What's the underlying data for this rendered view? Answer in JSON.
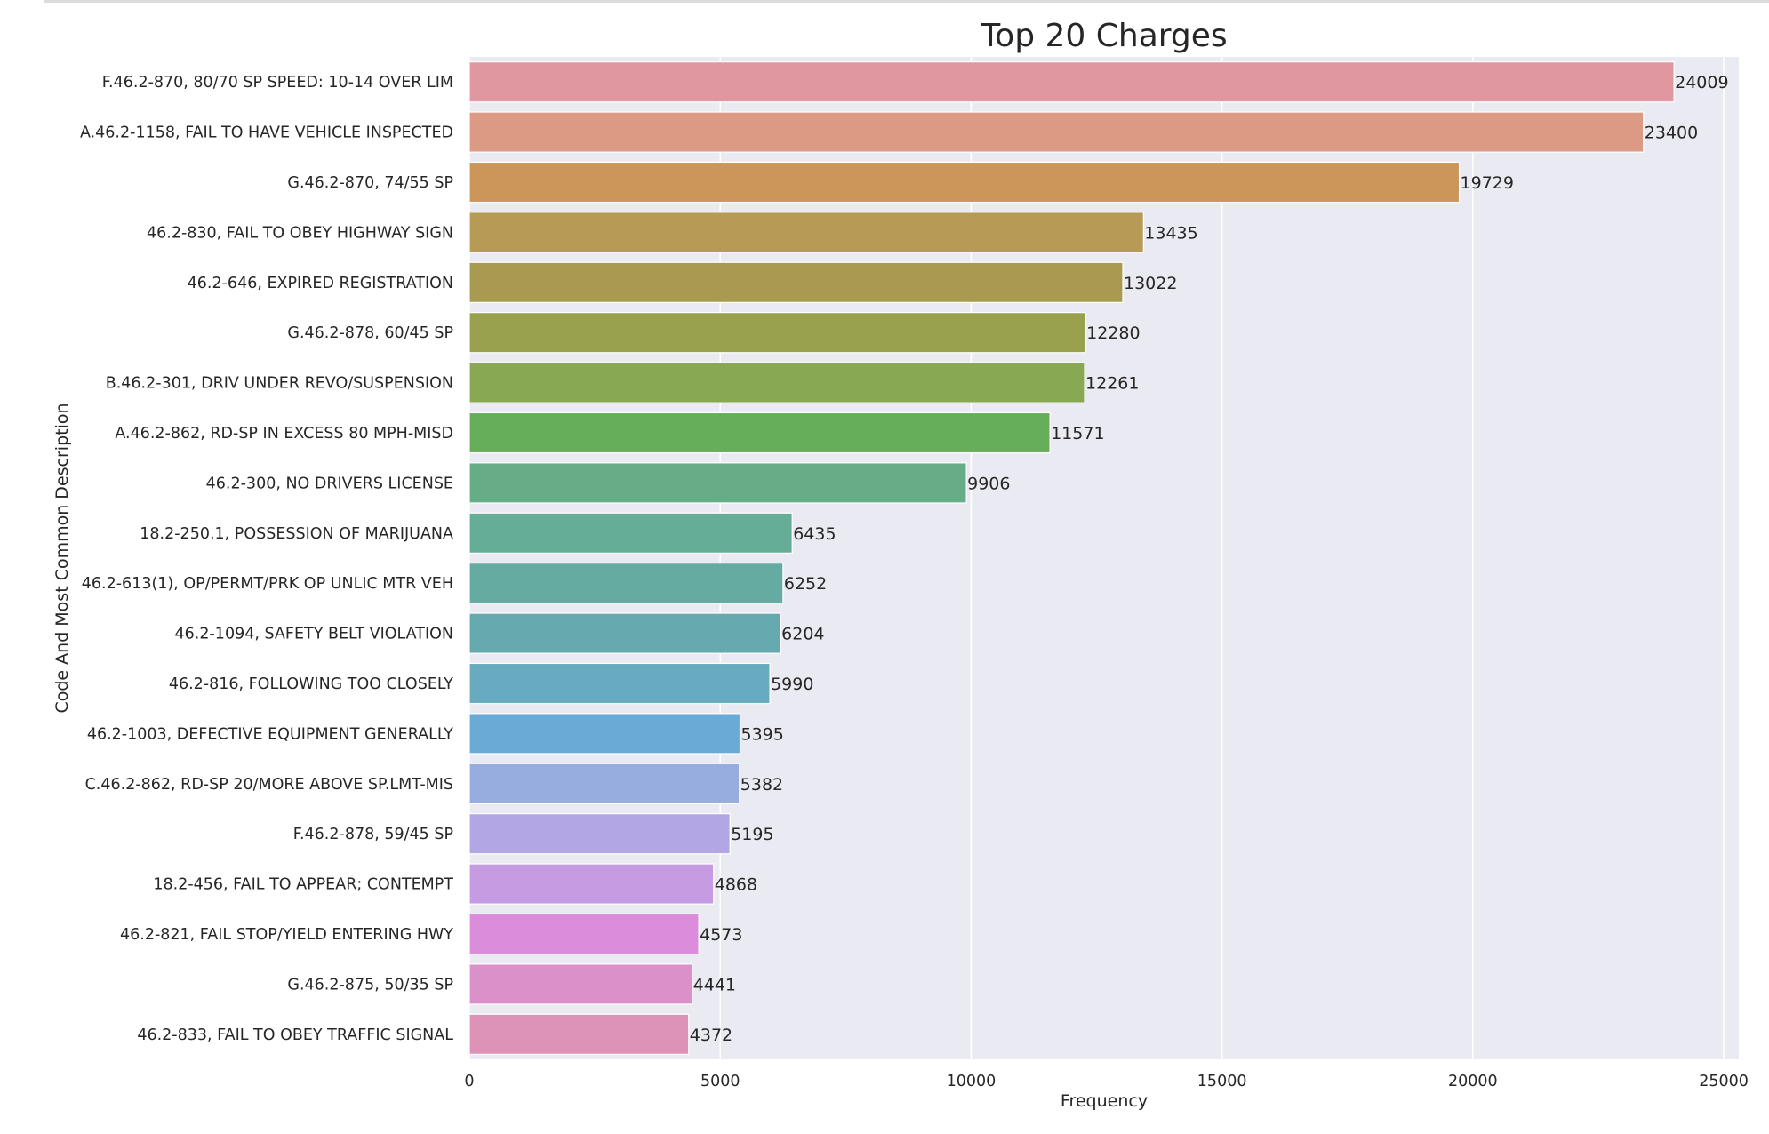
{
  "chart_data": {
    "type": "bar",
    "orientation": "horizontal",
    "title": "Top 20 Charges",
    "xlabel": "Frequency",
    "ylabel": "Code And Most Common Description",
    "xlim": [
      0,
      25300
    ],
    "xticks": [
      0,
      5000,
      10000,
      15000,
      20000,
      25000
    ],
    "grid": true,
    "categories": [
      "F.46.2-870, 80/70 SP SPEED: 10-14 OVER LIM",
      "A.46.2-1158, FAIL TO HAVE VEHICLE INSPECTED",
      "G.46.2-870, 74/55 SP",
      "46.2-830, FAIL TO OBEY HIGHWAY SIGN",
      "46.2-646, EXPIRED REGISTRATION",
      "G.46.2-878, 60/45 SP",
      "B.46.2-301, DRIV UNDER REVO/SUSPENSION",
      "A.46.2-862, RD-SP IN EXCESS 80 MPH-MISD",
      "46.2-300, NO DRIVERS LICENSE",
      "18.2-250.1, POSSESSION OF MARIJUANA",
      "46.2-613(1), OP/PERMT/PRK OP UNLIC MTR VEH",
      "46.2-1094, SAFETY BELT VIOLATION",
      "46.2-816, FOLLOWING TOO CLOSELY",
      "46.2-1003, DEFECTIVE EQUIPMENT GENERALLY",
      "C.46.2-862, RD-SP 20/MORE ABOVE SP.LMT-MIS",
      "F.46.2-878, 59/45 SP",
      "18.2-456, FAIL TO APPEAR; CONTEMPT",
      "46.2-821, FAIL STOP/YIELD ENTERING HWY",
      "G.46.2-875, 50/35 SP",
      "46.2-833, FAIL TO OBEY TRAFFIC SIGNAL"
    ],
    "values": [
      24009,
      23400,
      19729,
      13435,
      13022,
      12280,
      12261,
      11571,
      9906,
      6435,
      6252,
      6204,
      5990,
      5395,
      5382,
      5195,
      4868,
      4573,
      4441,
      4372
    ],
    "colors": [
      "#e0979f",
      "#dc9a84",
      "#cc955a",
      "#b69a55",
      "#a89a50",
      "#99a14f",
      "#88a853",
      "#66ae5a",
      "#66ac87",
      "#66ad97",
      "#66aba2",
      "#66a9ae",
      "#68abc1",
      "#6aaad6",
      "#98addf",
      "#b3a6e5",
      "#c79be2",
      "#db8ddc",
      "#dc90c9",
      "#dd93b8"
    ],
    "background": "#eaeaf2",
    "grid_color": "#ffffff"
  }
}
